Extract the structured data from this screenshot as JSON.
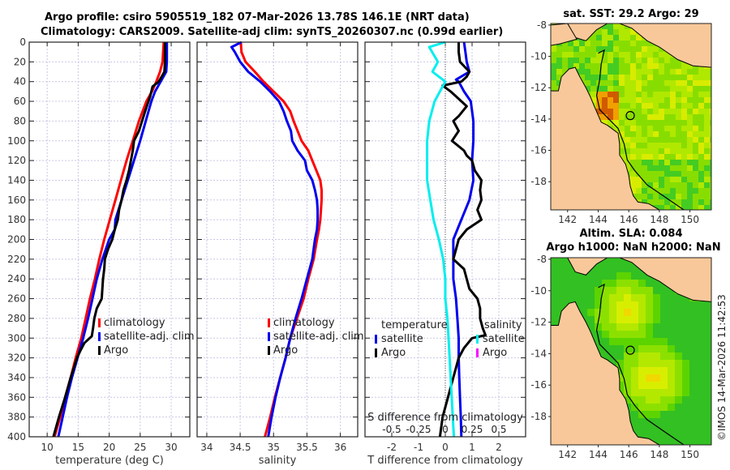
{
  "header": {
    "title_line1": "Argo profile: csiro 5905519_182 07-Mar-2026 13.78S 146.1E (NRT data)",
    "title_line2": "Climatology: CARS2009. Satellite-adj clim: synTS_20260307.nc (0.99d earlier)"
  },
  "colors": {
    "climatology": "#ff0000",
    "satellite": "#0000ee",
    "argo": "#000000",
    "salinity_satellite": "#00eeee",
    "salinity_argo": "#ff00ff",
    "land": "#f8c89a",
    "grid": "#c8c8e6"
  },
  "copyright": "©IMOS 14-Mar-2026 11:42:53",
  "chart_data": [
    {
      "type": "line",
      "name": "temperature-profile",
      "xlabel": "temperature (deg C)",
      "ylabel": "",
      "xlim": [
        7.1,
        33.0
      ],
      "ylim": [
        400,
        0
      ],
      "xticks": [
        10,
        15,
        20,
        25,
        30
      ],
      "yticks": [
        0,
        20,
        40,
        60,
        80,
        100,
        120,
        140,
        160,
        180,
        200,
        220,
        240,
        260,
        280,
        300,
        320,
        340,
        360,
        380,
        400
      ],
      "grid": true,
      "legend": {
        "position": "center-right",
        "entries": [
          "climatology",
          "satellite-adj. clim",
          "Argo"
        ]
      },
      "series": [
        {
          "name": "climatology",
          "color": "#ff0000",
          "depth": [
            0,
            10,
            20,
            30,
            40,
            50,
            60,
            80,
            100,
            120,
            140,
            160,
            180,
            200,
            220,
            240,
            260,
            280,
            300,
            320,
            340,
            360,
            380,
            400
          ],
          "values": [
            28.8,
            28.7,
            28.6,
            28.2,
            27.6,
            26.9,
            26.0,
            24.8,
            23.8,
            22.8,
            21.9,
            21.0,
            20.1,
            19.2,
            18.4,
            17.7,
            16.9,
            16.2,
            15.5,
            14.6,
            13.8,
            12.9,
            12.1,
            11.2
          ]
        },
        {
          "name": "satellite-adj. clim",
          "color": "#0000ee",
          "depth": [
            0,
            10,
            20,
            30,
            40,
            50,
            60,
            80,
            100,
            120,
            140,
            160,
            180,
            190,
            200,
            220,
            240,
            260,
            280,
            300,
            320,
            340,
            360,
            380,
            400
          ],
          "values": [
            29.3,
            29.3,
            29.3,
            29.2,
            28.3,
            27.4,
            26.8,
            25.9,
            25.0,
            24.0,
            23.0,
            22.0,
            21.0,
            20.9,
            20.0,
            18.9,
            18.0,
            17.3,
            16.6,
            15.8,
            14.9,
            14.0,
            13.2,
            12.5,
            11.8
          ]
        },
        {
          "name": "Argo",
          "color": "#000000",
          "depth": [
            0,
            10,
            20,
            30,
            40,
            45,
            55,
            70,
            80,
            90,
            100,
            110,
            120,
            130,
            140,
            150,
            160,
            170,
            180,
            190,
            200,
            210,
            220,
            230,
            240,
            250,
            260,
            270,
            280,
            290,
            298,
            305,
            312,
            320,
            340,
            360,
            380,
            400
          ],
          "values": [
            29.0,
            29.0,
            29.0,
            28.9,
            28.0,
            27.0,
            26.6,
            25.8,
            25.3,
            24.8,
            24.0,
            23.8,
            23.5,
            23.2,
            22.8,
            22.3,
            22.0,
            21.6,
            21.4,
            20.9,
            20.5,
            19.8,
            19.3,
            19.2,
            19.0,
            18.9,
            18.8,
            18.0,
            17.6,
            17.4,
            17.2,
            16.0,
            15.4,
            14.8,
            13.8,
            12.9,
            11.9,
            11.0
          ]
        }
      ]
    },
    {
      "type": "line",
      "name": "salinity-profile",
      "xlabel": "salinity",
      "xlim": [
        33.855,
        36.26
      ],
      "ylim": [
        400,
        0
      ],
      "xticks": [
        34,
        34.5,
        35,
        35.5,
        36
      ],
      "yticks": [
        0,
        20,
        40,
        60,
        80,
        100,
        120,
        140,
        160,
        180,
        200,
        220,
        240,
        260,
        280,
        300,
        320,
        340,
        360,
        380,
        400
      ],
      "grid": true,
      "legend": {
        "position": "center-right",
        "entries": [
          "climatology",
          "satellite-adj. clim",
          "Argo"
        ]
      },
      "series": [
        {
          "name": "climatology",
          "color": "#ff0000",
          "depth": [
            0,
            10,
            20,
            30,
            40,
            50,
            60,
            70,
            80,
            90,
            100,
            110,
            120,
            130,
            140,
            150,
            160,
            170,
            180,
            190,
            200,
            220,
            240,
            260,
            280,
            300,
            320,
            340,
            360,
            380,
            400
          ],
          "values": [
            34.51,
            34.52,
            34.58,
            34.72,
            34.85,
            35.0,
            35.15,
            35.25,
            35.3,
            35.36,
            35.42,
            35.52,
            35.58,
            35.64,
            35.7,
            35.72,
            35.72,
            35.71,
            35.7,
            35.68,
            35.65,
            35.6,
            35.52,
            35.45,
            35.35,
            35.25,
            35.18,
            35.1,
            35.02,
            34.95,
            34.87
          ]
        },
        {
          "name": "satellite-adj. clim",
          "color": "#0000ee",
          "depth": [
            0,
            5,
            10,
            20,
            30,
            40,
            50,
            60,
            70,
            80,
            90,
            100,
            110,
            120,
            130,
            140,
            150,
            160,
            170,
            180,
            190,
            200,
            220,
            240,
            260,
            280,
            300,
            320,
            340,
            360,
            380,
            400
          ],
          "values": [
            34.52,
            34.37,
            34.42,
            34.5,
            34.62,
            34.8,
            34.95,
            35.08,
            35.15,
            35.2,
            35.26,
            35.28,
            35.36,
            35.47,
            35.5,
            35.58,
            35.62,
            35.65,
            35.66,
            35.66,
            35.65,
            35.62,
            35.58,
            35.5,
            35.42,
            35.33,
            35.25,
            35.18,
            35.1,
            35.03,
            34.97,
            34.92
          ]
        }
      ]
    },
    {
      "type": "line",
      "name": "difference-profile",
      "xlabel": "T difference from climatology",
      "xlabel_top": "S difference from climatology",
      "xlim": [
        -3.0,
        3.0
      ],
      "xlim_salinity": [
        -0.75,
        0.75
      ],
      "ylim": [
        400,
        0
      ],
      "xticks": [
        -2,
        -1,
        0,
        1,
        2
      ],
      "xticks_salinity_labels": [
        "-0.5",
        "-0.25",
        "0",
        "0.25",
        "0.5"
      ],
      "yticks": [
        0,
        20,
        40,
        60,
        80,
        100,
        120,
        140,
        160,
        180,
        200,
        220,
        240,
        260,
        280,
        300,
        320,
        340,
        360,
        380,
        400
      ],
      "grid": true,
      "legend": {
        "temperature_title": "temperature",
        "salinity_title": "salinity",
        "entries": [
          "satellite",
          "Argo",
          "satellite",
          "Argo"
        ]
      },
      "series": [
        {
          "name": "T satellite",
          "color": "#0000ee",
          "depth": [
            0,
            10,
            20,
            30,
            38,
            40,
            50,
            60,
            80,
            100,
            120,
            140,
            160,
            180,
            200,
            220,
            240,
            260,
            280,
            300,
            320,
            340,
            360,
            380,
            400
          ],
          "values": [
            0.7,
            0.75,
            0.8,
            0.9,
            0.4,
            0.5,
            0.7,
            0.95,
            1.05,
            1.05,
            1.0,
            1.05,
            0.9,
            0.6,
            0.3,
            0.3,
            0.3,
            0.4,
            0.45,
            0.5,
            0.5,
            0.52,
            0.55,
            0.58,
            0.6
          ]
        },
        {
          "name": "T Argo",
          "color": "#000000",
          "depth": [
            0,
            10,
            20,
            30,
            35,
            40,
            44,
            50,
            60,
            65,
            75,
            80,
            90,
            100,
            110,
            115,
            120,
            130,
            140,
            150,
            160,
            170,
            180,
            190,
            200,
            210,
            220,
            230,
            240,
            250,
            260,
            270,
            280,
            290,
            297,
            300,
            310,
            320,
            340,
            360,
            380,
            400
          ],
          "values": [
            0.5,
            0.5,
            0.55,
            0.9,
            0.8,
            0.6,
            -0.1,
            0.2,
            0.6,
            0.8,
            0.5,
            0.3,
            0.5,
            0.25,
            0.7,
            0.8,
            1.0,
            1.1,
            1.35,
            1.3,
            1.35,
            1.2,
            1.35,
            0.8,
            0.5,
            0.4,
            0.3,
            0.7,
            0.8,
            0.9,
            1.2,
            1.3,
            1.3,
            1.4,
            1.5,
            1.0,
            0.7,
            0.5,
            0.3,
            0.1,
            -0.1,
            -0.2
          ]
        },
        {
          "name": "S satellite",
          "color": "#00eeee",
          "depth": [
            0,
            5,
            20,
            30,
            40,
            60,
            80,
            100,
            120,
            140,
            160,
            180,
            200,
            220,
            240,
            260,
            280,
            300,
            320,
            340,
            360,
            380,
            400
          ],
          "values": [
            0.0,
            -0.15,
            -0.07,
            -0.12,
            0.0,
            -0.1,
            -0.15,
            -0.17,
            -0.17,
            -0.17,
            -0.14,
            -0.11,
            -0.06,
            -0.02,
            0.0,
            0.0,
            0.02,
            0.03,
            0.04,
            0.05,
            0.06,
            0.07,
            0.08
          ]
        }
      ]
    },
    {
      "type": "heatmap",
      "name": "sst-map",
      "title": "sat. SST: 29.2 Argo: 29",
      "xlim": [
        140.9,
        151.4
      ],
      "ylim": [
        -19.8,
        -7.9
      ],
      "xticks": [
        142,
        144,
        146,
        148,
        150
      ],
      "yticks": [
        -8,
        -10,
        -12,
        -14,
        -16,
        -18
      ],
      "marker": {
        "lon": 146.1,
        "lat": -13.78
      }
    },
    {
      "type": "heatmap",
      "name": "sla-map",
      "title": "Altim. SLA: 0.084",
      "subtitle": "Argo h1000: NaN h2000: NaN",
      "xlim": [
        140.9,
        151.4
      ],
      "ylim": [
        -19.8,
        -7.9
      ],
      "xticks": [
        142,
        144,
        146,
        148,
        150
      ],
      "yticks": [
        -8,
        -10,
        -12,
        -14,
        -16,
        -18
      ],
      "marker": {
        "lon": 146.1,
        "lat": -13.78
      }
    }
  ]
}
